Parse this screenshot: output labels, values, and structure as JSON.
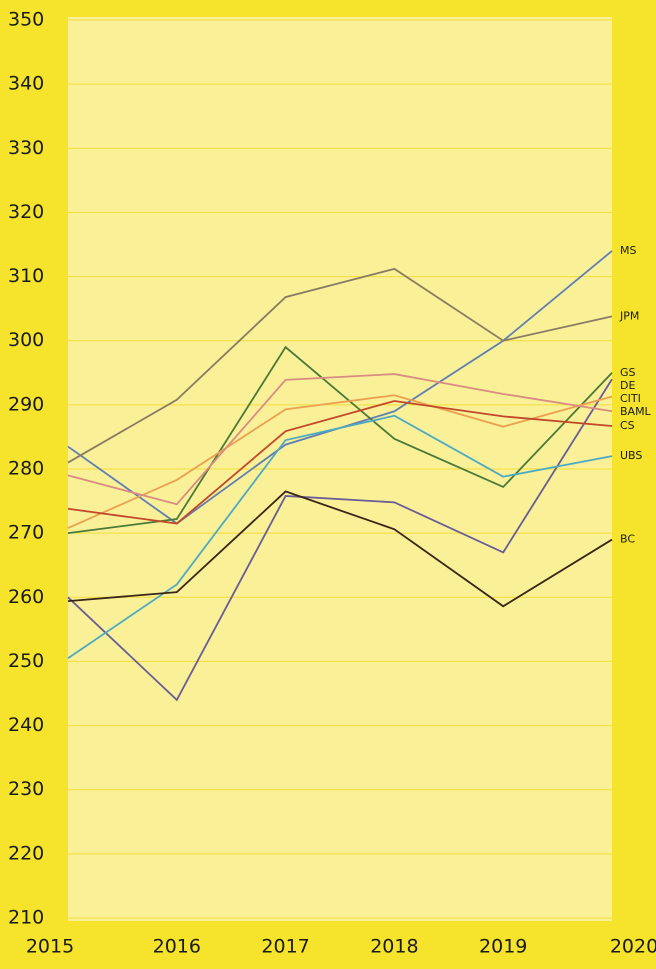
{
  "chart_data": {
    "type": "line",
    "categories": [
      "2015",
      "2016",
      "2017",
      "2018",
      "2019",
      "2020"
    ],
    "ylim": [
      210,
      350
    ],
    "yticks": [
      210,
      220,
      230,
      240,
      250,
      260,
      270,
      280,
      290,
      300,
      310,
      320,
      330,
      340,
      350
    ],
    "grid": true,
    "series": [
      {
        "name": "MS",
        "color": "#5f7fb3",
        "values": [
          283.5,
          271.5,
          283.8,
          289,
          300,
          314
        ]
      },
      {
        "name": "JPM",
        "color": "#8a7c62",
        "values": [
          281,
          290.8,
          306.8,
          311.2,
          300,
          303.8
        ]
      },
      {
        "name": "GS",
        "color": "#4b7a38",
        "values": [
          270,
          272.2,
          299,
          284.7,
          277.2,
          295
        ]
      },
      {
        "name": "DE",
        "color": "#6a5c96",
        "values": [
          260,
          244,
          275.8,
          274.8,
          267,
          294
        ]
      },
      {
        "name": "CITI",
        "color": "#eba052",
        "values": [
          270.8,
          278.3,
          289.3,
          291.5,
          286.6,
          291.3
        ]
      },
      {
        "name": "BAML",
        "color": "#d98c82",
        "values": [
          279,
          274.5,
          293.9,
          294.8,
          291.7,
          289
        ]
      },
      {
        "name": "CS",
        "color": "#c2482a",
        "values": [
          273.8,
          271.5,
          285.9,
          290.6,
          288.2,
          286.7
        ]
      },
      {
        "name": "UBS",
        "color": "#4eaac2",
        "values": [
          250.5,
          262,
          284.5,
          288.3,
          278.8,
          282
        ]
      },
      {
        "name": "BC",
        "color": "#3a2616",
        "values": [
          259.4,
          260.8,
          276.5,
          270.6,
          258.6,
          269
        ]
      }
    ]
  }
}
